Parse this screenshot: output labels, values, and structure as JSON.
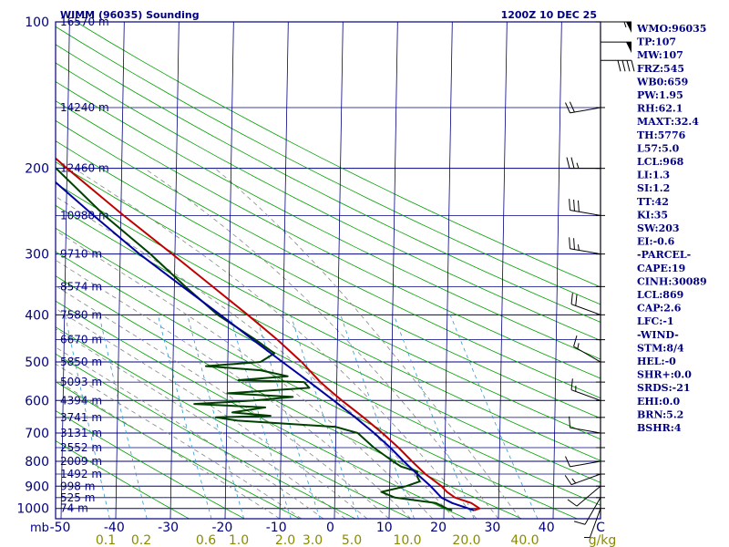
{
  "chart_data": {
    "type": "line",
    "title_left": "WIMM (96035) Sounding",
    "title_right": "1200Z 10 DEC 25",
    "xlabel": "Temperature (C)",
    "ylabel": "mb",
    "x_tick_labels": [
      "-50",
      "-40",
      "-30",
      "-20",
      "-10",
      "0",
      "10",
      "20",
      "30",
      "40",
      "C"
    ],
    "mixing_ratio_labels": [
      "0.1",
      "0.2",
      "0.6",
      "1.0",
      "2.0",
      "3.0",
      "5.0",
      "10.0",
      "20.0",
      "40.0",
      "g/kg"
    ],
    "mixing_ratio_values": [
      0.1,
      0.2,
      0.6,
      1.0,
      2.0,
      3.0,
      5.0,
      10.0,
      20.0,
      40.0
    ],
    "pressure_ticks": [
      1000,
      900,
      800,
      700,
      600,
      500,
      400,
      300,
      200,
      100
    ],
    "pressure_tick_labels": [
      "1000",
      "900",
      "800",
      "700",
      "600",
      "500",
      "400",
      "300",
      "200",
      "100"
    ],
    "axis_unit_label": "mb",
    "xlim": [
      -50,
      50
    ],
    "ylim_mb": [
      1050,
      100
    ],
    "height_levels": [
      {
        "p": 100,
        "label": "16570 m"
      },
      {
        "p": 150,
        "label": "14240 m"
      },
      {
        "p": 200,
        "label": "12460 m"
      },
      {
        "p": 250,
        "label": "10980 m"
      },
      {
        "p": 300,
        "label": "9710 m"
      },
      {
        "p": 350,
        "label": "8574 m"
      },
      {
        "p": 400,
        "label": "7580 m"
      },
      {
        "p": 450,
        "label": "6670 m"
      },
      {
        "p": 500,
        "label": "5850 m"
      },
      {
        "p": 550,
        "label": "5093 m"
      },
      {
        "p": 600,
        "label": "4394 m"
      },
      {
        "p": 650,
        "label": "3741 m"
      },
      {
        "p": 700,
        "label": "3131 m"
      },
      {
        "p": 750,
        "label": "2552 m"
      },
      {
        "p": 800,
        "label": "2009 m"
      },
      {
        "p": 850,
        "label": "1492 m"
      },
      {
        "p": 900,
        "label": "998 m"
      },
      {
        "p": 950,
        "label": "525 m"
      },
      {
        "p": 1000,
        "label": "74 m"
      }
    ],
    "series": [
      {
        "name": "Temperature",
        "color": "#c00000",
        "points": [
          [
            1009,
            25.5
          ],
          [
            1000,
            26.5
          ],
          [
            975,
            25.0
          ],
          [
            950,
            22.0
          ],
          [
            925,
            20.5
          ],
          [
            900,
            19.5
          ],
          [
            850,
            16.5
          ],
          [
            800,
            14.0
          ],
          [
            750,
            11.5
          ],
          [
            700,
            8.5
          ],
          [
            650,
            5.0
          ],
          [
            600,
            1.0
          ],
          [
            575,
            -1.0
          ],
          [
            550,
            -3.0
          ],
          [
            500,
            -6.5
          ],
          [
            450,
            -11.0
          ],
          [
            400,
            -16.5
          ],
          [
            350,
            -23.0
          ],
          [
            300,
            -30.5
          ],
          [
            250,
            -39.5
          ],
          [
            200,
            -50.0
          ],
          [
            175,
            -56.0
          ],
          [
            150,
            -63.0
          ],
          [
            125,
            -68.0
          ],
          [
            110,
            -69.0
          ],
          [
            103,
            -67.0
          ],
          [
            100,
            -65.0
          ]
        ]
      },
      {
        "name": "Dewpoint",
        "color": "#004000",
        "points": [
          [
            1009,
            21.5
          ],
          [
            1000,
            20.5
          ],
          [
            975,
            18.5
          ],
          [
            950,
            11.0
          ],
          [
            925,
            8.5
          ],
          [
            900,
            13.0
          ],
          [
            880,
            15.5
          ],
          [
            860,
            15.0
          ],
          [
            840,
            15.0
          ],
          [
            820,
            12.0
          ],
          [
            800,
            10.5
          ],
          [
            750,
            7.0
          ],
          [
            700,
            4.0
          ],
          [
            680,
            0.0
          ],
          [
            660,
            -18.0
          ],
          [
            650,
            -22.0
          ],
          [
            645,
            -12.0
          ],
          [
            635,
            -19.0
          ],
          [
            620,
            -13.0
          ],
          [
            610,
            -26.0
          ],
          [
            600,
            -15.0
          ],
          [
            590,
            -8.0
          ],
          [
            580,
            -20.0
          ],
          [
            565,
            -5.0
          ],
          [
            550,
            -6.0
          ],
          [
            545,
            -18.0
          ],
          [
            535,
            -9.0
          ],
          [
            520,
            -14.0
          ],
          [
            510,
            -24.0
          ],
          [
            500,
            -14.0
          ],
          [
            480,
            -11.5
          ],
          [
            450,
            -15.0
          ],
          [
            400,
            -22.0
          ],
          [
            350,
            -28.0
          ],
          [
            300,
            -34.5
          ],
          [
            250,
            -43.0
          ],
          [
            200,
            -52.0
          ],
          [
            150,
            -66.0
          ],
          [
            130,
            -70.0
          ],
          [
            115,
            -79.0
          ],
          [
            105,
            -82.0
          ],
          [
            100,
            -80.0
          ]
        ]
      },
      {
        "name": "Parcel",
        "color": "#0000a0",
        "points": [
          [
            1009,
            25.5
          ],
          [
            975,
            21.5
          ],
          [
            950,
            19.5
          ],
          [
            900,
            17.5
          ],
          [
            850,
            15.0
          ],
          [
            800,
            12.5
          ],
          [
            750,
            10.0
          ],
          [
            700,
            7.0
          ],
          [
            650,
            3.5
          ],
          [
            600,
            -0.5
          ],
          [
            550,
            -5.0
          ],
          [
            500,
            -10.0
          ],
          [
            450,
            -15.5
          ],
          [
            400,
            -21.5
          ],
          [
            350,
            -28.5
          ],
          [
            300,
            -36.5
          ],
          [
            250,
            -45.0
          ],
          [
            200,
            -55.0
          ],
          [
            150,
            -68.0
          ],
          [
            120,
            -78.0
          ],
          [
            100,
            -84.0
          ]
        ]
      }
    ],
    "wind_barbs": [
      {
        "p": 1000,
        "dir": 200,
        "spd": 5
      },
      {
        "p": 950,
        "dir": 210,
        "spd": 10
      },
      {
        "p": 900,
        "dir": 230,
        "spd": 10
      },
      {
        "p": 850,
        "dir": 250,
        "spd": 15
      },
      {
        "p": 800,
        "dir": 260,
        "spd": 10
      },
      {
        "p": 700,
        "dir": 280,
        "spd": 10
      },
      {
        "p": 600,
        "dir": 290,
        "spd": 15
      },
      {
        "p": 500,
        "dir": 300,
        "spd": 15
      },
      {
        "p": 400,
        "dir": 290,
        "spd": 20
      },
      {
        "p": 300,
        "dir": 280,
        "spd": 25
      },
      {
        "p": 250,
        "dir": 280,
        "spd": 30
      },
      {
        "p": 200,
        "dir": 270,
        "spd": 25
      },
      {
        "p": 150,
        "dir": 260,
        "spd": 20
      },
      {
        "p": 120,
        "dir": 90,
        "spd": 40
      },
      {
        "p": 110,
        "dir": 90,
        "spd": 50
      },
      {
        "p": 100,
        "dir": 90,
        "spd": 55
      }
    ],
    "indices": [
      "WMO:96035",
      "TP:107",
      "MW:107",
      "FRZ:545",
      "WB0:659",
      "PW:1.95",
      "RH:62.1",
      "MAXT:32.4",
      "TH:5776",
      "L57:5.0",
      "LCL:968",
      "LI:1.3",
      "SI:1.2",
      "TT:42",
      "KI:35",
      "SW:203",
      "EI:-0.6",
      "-PARCEL-",
      "CAPE:19",
      "CINH:30089",
      "LCL:869",
      "CAP:2.6",
      "LFC:-1",
      "-WIND-",
      "STM:8/4",
      "HEL:-0",
      "SHR+:0.0",
      "SRDS:-21",
      "EHI:0.0",
      "BRN:5.2",
      "BSHR:4"
    ]
  },
  "colors": {
    "frame": "#000080",
    "isotherm": "#000080",
    "isobar": "#000080",
    "dry_adiabat": "#00a000",
    "moist_adiabat": "#888888",
    "mixing_ratio": "#3399cc",
    "temperature": "#c00000",
    "dewpoint": "#004000",
    "parcel": "#0000a0",
    "mix_label": "#8b8b00"
  }
}
